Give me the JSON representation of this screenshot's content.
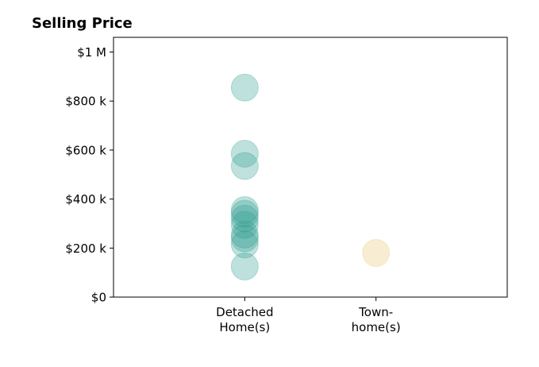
{
  "chart_data": {
    "type": "scatter",
    "title": "Selling Price",
    "xlabel": "",
    "ylabel": "",
    "categories": [
      [
        "Detached",
        "Home(s)"
      ],
      [
        "Town-",
        "home(s)"
      ]
    ],
    "ylim": [
      0,
      1060000
    ],
    "xlim": [
      -1,
      2
    ],
    "y_ticks": [
      0,
      200000,
      400000,
      600000,
      800000,
      1000000
    ],
    "y_tick_labels": [
      "$0",
      "$200 k",
      "$400 k",
      "$600 k",
      "$800 k",
      "$1 M"
    ],
    "grid": false,
    "series": [
      {
        "category_index": 0,
        "color": "#2a9d8f",
        "values": [
          855000,
          585000,
          535000,
          355000,
          340000,
          320000,
          295000,
          255000,
          240000,
          215000,
          125000
        ]
      },
      {
        "category_index": 1,
        "color": "#e9c46a",
        "values": [
          180000
        ]
      }
    ]
  }
}
